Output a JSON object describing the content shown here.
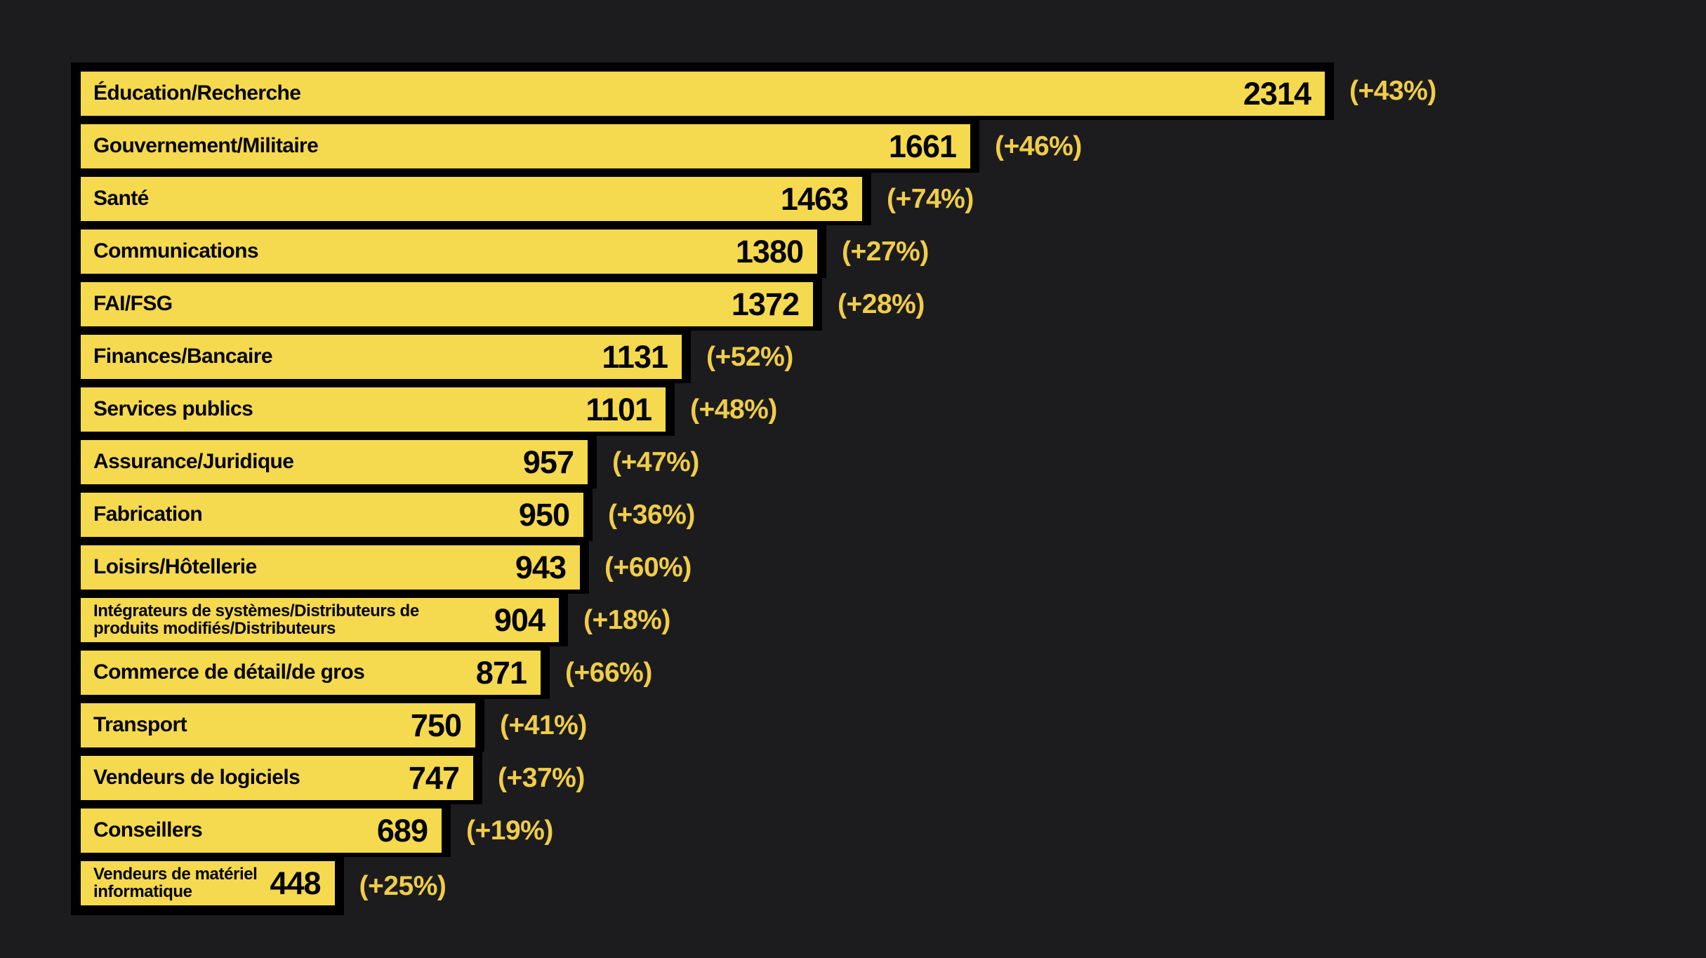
{
  "page": {
    "background_color": "#1c1c1e"
  },
  "chart_data": {
    "type": "bar",
    "orientation": "horizontal",
    "value_max": 2314,
    "grid": false,
    "legend": false,
    "colors": {
      "bar_fill": "#f5d94f",
      "bar_outline": "#000000",
      "label_text": "#050505",
      "value_text": "#050505",
      "change_text": "#f0cd49"
    },
    "rows": [
      {
        "category": "Éducation/Recherche",
        "value": 2314,
        "change_pct": 43,
        "change_label": "(+43%)"
      },
      {
        "category": "Gouvernement/Militaire",
        "value": 1661,
        "change_pct": 46,
        "change_label": "(+46%)"
      },
      {
        "category": "Santé",
        "value": 1463,
        "change_pct": 74,
        "change_label": "(+74%)"
      },
      {
        "category": "Communications",
        "value": 1380,
        "change_pct": 27,
        "change_label": "(+27%)"
      },
      {
        "category": "FAI/FSG",
        "value": 1372,
        "change_pct": 28,
        "change_label": "(+28%)"
      },
      {
        "category": "Finances/Bancaire",
        "value": 1131,
        "change_pct": 52,
        "change_label": "(+52%)"
      },
      {
        "category": "Services publics",
        "value": 1101,
        "change_pct": 48,
        "change_label": "(+48%)"
      },
      {
        "category": "Assurance/Juridique",
        "value": 957,
        "change_pct": 47,
        "change_label": "(+47%)"
      },
      {
        "category": "Fabrication",
        "value": 950,
        "change_pct": 36,
        "change_label": "(+36%)"
      },
      {
        "category": "Loisirs/Hôtellerie",
        "value": 943,
        "change_pct": 60,
        "change_label": "(+60%)"
      },
      {
        "category": "Intégrateurs de systèmes/Distributeurs de\nproduits modifiés/Distributeurs",
        "value": 904,
        "change_pct": 18,
        "change_label": "(+18%)"
      },
      {
        "category": "Commerce de détail/de gros",
        "value": 871,
        "change_pct": 66,
        "change_label": "(+66%)"
      },
      {
        "category": "Transport",
        "value": 750,
        "change_pct": 41,
        "change_label": "(+41%)"
      },
      {
        "category": "Vendeurs de logiciels",
        "value": 747,
        "change_pct": 37,
        "change_label": "(+37%)"
      },
      {
        "category": "Conseillers",
        "value": 689,
        "change_pct": 19,
        "change_label": "(+19%)"
      },
      {
        "category": "Vendeurs de matériel\ninformatique",
        "value": 448,
        "change_pct": 25,
        "change_label": "(+25%)"
      }
    ]
  }
}
